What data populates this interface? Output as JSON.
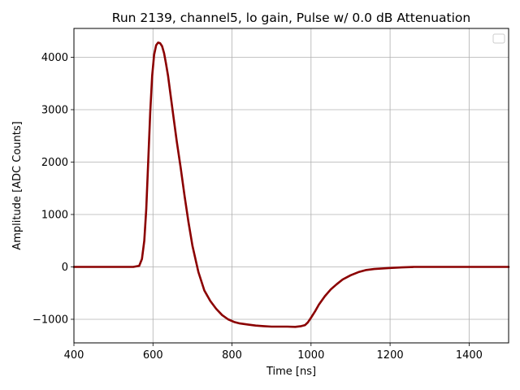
{
  "chart_data": {
    "type": "line",
    "title": "Run 2139, channel5, lo gain, Pulse w/ 0.0 dB Attenuation",
    "xlabel": "Time [ns]",
    "ylabel": "Amplitude [ADC Counts]",
    "xlim": [
      400,
      1500
    ],
    "ylim": [
      -1450,
      4550
    ],
    "xticks": [
      400,
      600,
      800,
      1000,
      1200,
      1400
    ],
    "yticks": [
      -1000,
      0,
      1000,
      2000,
      3000,
      4000
    ],
    "xtick_labels": [
      "400",
      "600",
      "800",
      "1000",
      "1200",
      "1400"
    ],
    "ytick_labels": [
      "−1000",
      "0",
      "1000",
      "2000",
      "3000",
      "4000"
    ],
    "grid": true,
    "legend": "top-right",
    "legend_entries": [],
    "line_color": "#8b0000",
    "series": [
      {
        "x": [
          400,
          450,
          500,
          550,
          565,
          572,
          578,
          583,
          588,
          593,
          598,
          603,
          608,
          613,
          618,
          623,
          628,
          633,
          638,
          645,
          652,
          660,
          670,
          680,
          690,
          700,
          715,
          730,
          745,
          760,
          775,
          790,
          805,
          820,
          840,
          860,
          880,
          900,
          920,
          940,
          960,
          975,
          985,
          992,
          1000,
          1010,
          1020,
          1035,
          1050,
          1065,
          1080,
          1100,
          1120,
          1140,
          1160,
          1180,
          1200,
          1230,
          1260,
          1290,
          1320,
          1360,
          1400,
          1450,
          1500
        ],
        "y": [
          0,
          0,
          0,
          0,
          20,
          150,
          500,
          1100,
          2000,
          2950,
          3650,
          4050,
          4230,
          4280,
          4270,
          4210,
          4080,
          3880,
          3650,
          3250,
          2850,
          2400,
          1900,
          1350,
          850,
          400,
          -100,
          -450,
          -650,
          -800,
          -920,
          -1000,
          -1050,
          -1080,
          -1100,
          -1120,
          -1130,
          -1140,
          -1140,
          -1140,
          -1145,
          -1130,
          -1110,
          -1060,
          -970,
          -850,
          -720,
          -560,
          -430,
          -330,
          -240,
          -160,
          -100,
          -60,
          -40,
          -30,
          -20,
          -10,
          0,
          0,
          0,
          0,
          0,
          0,
          0
        ]
      }
    ]
  }
}
